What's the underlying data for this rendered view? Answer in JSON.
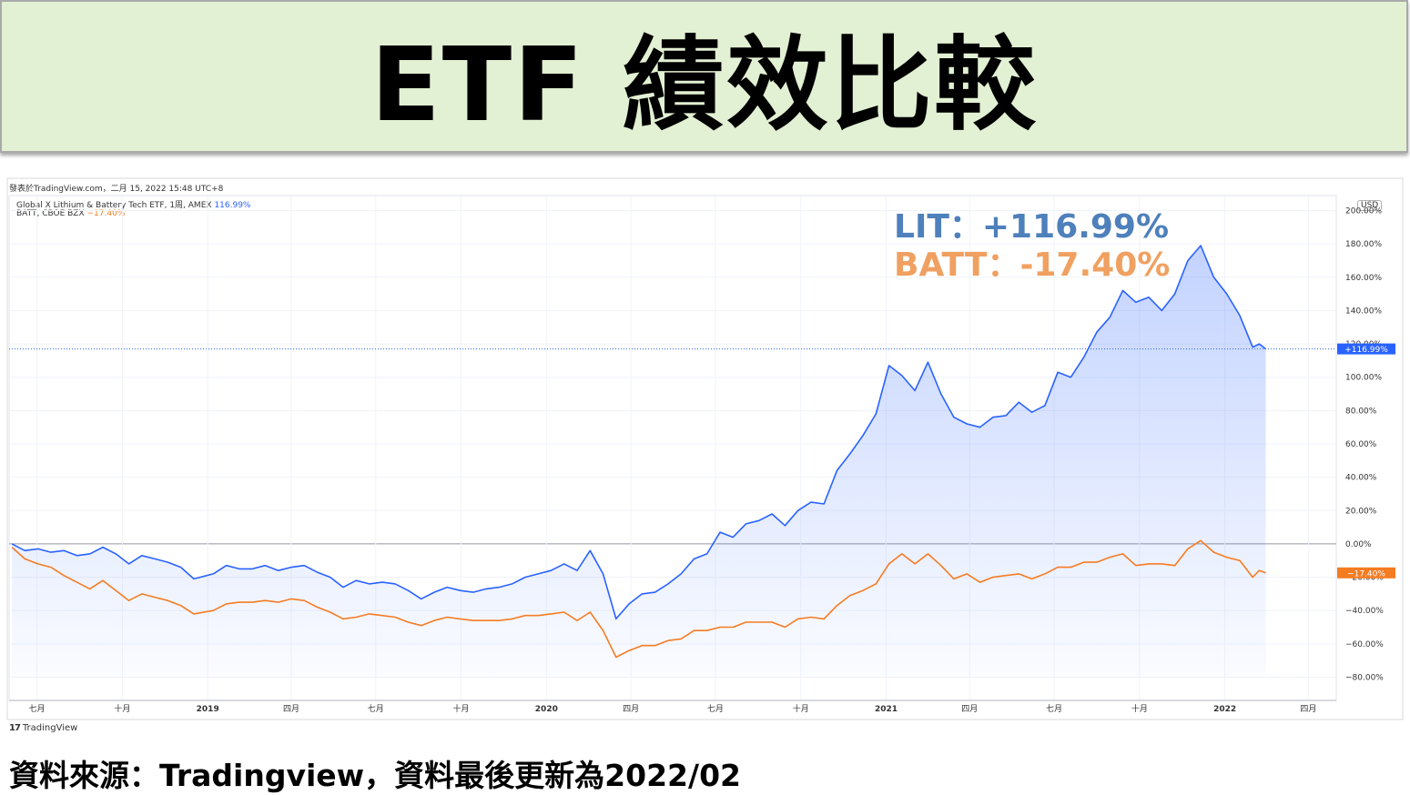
{
  "banner": {
    "title": "ETF 績效比較"
  },
  "publish_line": "發表於TradingView.com，二月 15, 2022 15:48 UTC+8",
  "legend": [
    {
      "label": "Global X Lithium & Battery Tech ETF, 1周, AMEX",
      "value": "116.99%",
      "color": "#2962ff"
    },
    {
      "label": "BATT, CBOE BZX",
      "value": "−17.40%",
      "color": "#f57c22"
    }
  ],
  "currency": "USD",
  "annotations": {
    "lit": "LIT：+116.99%",
    "batt": "BATT：-17.40%"
  },
  "tv_logo": {
    "mark": "17",
    "text": "TradingView"
  },
  "source_note": "資料來源：Tradingview，資料最後更新為2022/02",
  "chart_data": {
    "type": "line",
    "title": "",
    "y_unit": "%",
    "ylim": [
      -80,
      200
    ],
    "y_ticks": [
      "200.00%",
      "180.00%",
      "160.00%",
      "140.00%",
      "120.00%",
      "100.00%",
      "80.00%",
      "60.00%",
      "40.00%",
      "20.00%",
      "0.00%",
      "−20.00%",
      "−40.00%",
      "−60.00%",
      "−80.00%"
    ],
    "y_tick_values": [
      200,
      180,
      160,
      140,
      120,
      100,
      80,
      60,
      40,
      20,
      0,
      -20,
      -40,
      -60,
      -80
    ],
    "x_tick_labels": [
      "七月",
      "十月",
      "2019",
      "四月",
      "七月",
      "十月",
      "2020",
      "四月",
      "七月",
      "十月",
      "2021",
      "四月",
      "七月",
      "十月",
      "2022",
      "四月"
    ],
    "x_tick_dates": [
      "2018-07-01",
      "2018-10-01",
      "2019-01-01",
      "2019-04-01",
      "2019-07-01",
      "2019-10-01",
      "2020-01-01",
      "2020-04-01",
      "2020-07-01",
      "2020-10-01",
      "2021-01-01",
      "2021-04-01",
      "2021-07-01",
      "2021-10-01",
      "2022-01-01",
      "2022-04-01"
    ],
    "x_range": [
      "2018-06-01",
      "2022-05-01"
    ],
    "grid": true,
    "zero_line": true,
    "series": [
      {
        "name": "Global X Lithium & Battery Tech ETF",
        "color": "#2962ff",
        "last_label": "+116.99%",
        "area_fill": true,
        "points": [
          [
            "2018-06-04",
            0
          ],
          [
            "2018-06-18",
            -4
          ],
          [
            "2018-07-02",
            -3
          ],
          [
            "2018-07-16",
            -5
          ],
          [
            "2018-07-30",
            -4
          ],
          [
            "2018-08-13",
            -7
          ],
          [
            "2018-08-27",
            -6
          ],
          [
            "2018-09-10",
            -2
          ],
          [
            "2018-09-24",
            -6
          ],
          [
            "2018-10-08",
            -12
          ],
          [
            "2018-10-22",
            -7
          ],
          [
            "2018-11-05",
            -9
          ],
          [
            "2018-11-19",
            -11
          ],
          [
            "2018-12-03",
            -14
          ],
          [
            "2018-12-17",
            -21
          ],
          [
            "2019-01-07",
            -18
          ],
          [
            "2019-01-21",
            -13
          ],
          [
            "2019-02-04",
            -15
          ],
          [
            "2019-02-18",
            -15
          ],
          [
            "2019-03-04",
            -13
          ],
          [
            "2019-03-18",
            -16
          ],
          [
            "2019-04-01",
            -14
          ],
          [
            "2019-04-15",
            -13
          ],
          [
            "2019-04-29",
            -17
          ],
          [
            "2019-05-13",
            -20
          ],
          [
            "2019-05-27",
            -26
          ],
          [
            "2019-06-10",
            -22
          ],
          [
            "2019-06-24",
            -24
          ],
          [
            "2019-07-08",
            -23
          ],
          [
            "2019-07-22",
            -24
          ],
          [
            "2019-08-05",
            -28
          ],
          [
            "2019-08-19",
            -33
          ],
          [
            "2019-09-02",
            -29
          ],
          [
            "2019-09-16",
            -26
          ],
          [
            "2019-09-30",
            -28
          ],
          [
            "2019-10-14",
            -29
          ],
          [
            "2019-10-28",
            -27
          ],
          [
            "2019-11-11",
            -26
          ],
          [
            "2019-11-25",
            -24
          ],
          [
            "2019-12-09",
            -20
          ],
          [
            "2019-12-23",
            -18
          ],
          [
            "2020-01-06",
            -16
          ],
          [
            "2020-01-20",
            -12
          ],
          [
            "2020-02-03",
            -16
          ],
          [
            "2020-02-17",
            -4
          ],
          [
            "2020-03-02",
            -18
          ],
          [
            "2020-03-16",
            -45
          ],
          [
            "2020-03-30",
            -36
          ],
          [
            "2020-04-13",
            -30
          ],
          [
            "2020-04-27",
            -29
          ],
          [
            "2020-05-11",
            -24
          ],
          [
            "2020-05-25",
            -18
          ],
          [
            "2020-06-08",
            -9
          ],
          [
            "2020-06-22",
            -6
          ],
          [
            "2020-07-06",
            7
          ],
          [
            "2020-07-20",
            4
          ],
          [
            "2020-08-03",
            12
          ],
          [
            "2020-08-17",
            14
          ],
          [
            "2020-08-31",
            18
          ],
          [
            "2020-09-14",
            11
          ],
          [
            "2020-09-28",
            20
          ],
          [
            "2020-10-12",
            25
          ],
          [
            "2020-10-26",
            24
          ],
          [
            "2020-11-09",
            44
          ],
          [
            "2020-11-23",
            54
          ],
          [
            "2020-12-07",
            65
          ],
          [
            "2020-12-21",
            78
          ],
          [
            "2021-01-04",
            107
          ],
          [
            "2021-01-18",
            101
          ],
          [
            "2021-02-01",
            92
          ],
          [
            "2021-02-15",
            109
          ],
          [
            "2021-03-01",
            90
          ],
          [
            "2021-03-15",
            76
          ],
          [
            "2021-03-29",
            72
          ],
          [
            "2021-04-12",
            70
          ],
          [
            "2021-04-26",
            76
          ],
          [
            "2021-05-10",
            77
          ],
          [
            "2021-05-24",
            85
          ],
          [
            "2021-06-07",
            79
          ],
          [
            "2021-06-21",
            83
          ],
          [
            "2021-07-05",
            103
          ],
          [
            "2021-07-19",
            100
          ],
          [
            "2021-08-02",
            112
          ],
          [
            "2021-08-16",
            127
          ],
          [
            "2021-08-30",
            136
          ],
          [
            "2021-09-13",
            152
          ],
          [
            "2021-09-27",
            145
          ],
          [
            "2021-10-11",
            148
          ],
          [
            "2021-10-25",
            140
          ],
          [
            "2021-11-08",
            150
          ],
          [
            "2021-11-22",
            170
          ],
          [
            "2021-12-06",
            179
          ],
          [
            "2021-12-20",
            160
          ],
          [
            "2022-01-03",
            150
          ],
          [
            "2022-01-17",
            137
          ],
          [
            "2022-01-31",
            118
          ],
          [
            "2022-02-07",
            120
          ],
          [
            "2022-02-14",
            116.99
          ]
        ]
      },
      {
        "name": "BATT",
        "color": "#f57c22",
        "last_label": "−17.40%",
        "area_fill": false,
        "points": [
          [
            "2018-06-04",
            -2
          ],
          [
            "2018-06-18",
            -9
          ],
          [
            "2018-07-02",
            -12
          ],
          [
            "2018-07-16",
            -14
          ],
          [
            "2018-07-30",
            -19
          ],
          [
            "2018-08-13",
            -23
          ],
          [
            "2018-08-27",
            -27
          ],
          [
            "2018-09-10",
            -22
          ],
          [
            "2018-09-24",
            -28
          ],
          [
            "2018-10-08",
            -34
          ],
          [
            "2018-10-22",
            -30
          ],
          [
            "2018-11-05",
            -32
          ],
          [
            "2018-11-19",
            -34
          ],
          [
            "2018-12-03",
            -37
          ],
          [
            "2018-12-17",
            -42
          ],
          [
            "2019-01-07",
            -40
          ],
          [
            "2019-01-21",
            -36
          ],
          [
            "2019-02-04",
            -35
          ],
          [
            "2019-02-18",
            -35
          ],
          [
            "2019-03-04",
            -34
          ],
          [
            "2019-03-18",
            -35
          ],
          [
            "2019-04-01",
            -33
          ],
          [
            "2019-04-15",
            -34
          ],
          [
            "2019-04-29",
            -38
          ],
          [
            "2019-05-13",
            -41
          ],
          [
            "2019-05-27",
            -45
          ],
          [
            "2019-06-10",
            -44
          ],
          [
            "2019-06-24",
            -42
          ],
          [
            "2019-07-08",
            -43
          ],
          [
            "2019-07-22",
            -44
          ],
          [
            "2019-08-05",
            -47
          ],
          [
            "2019-08-19",
            -49
          ],
          [
            "2019-09-02",
            -46
          ],
          [
            "2019-09-16",
            -44
          ],
          [
            "2019-09-30",
            -45
          ],
          [
            "2019-10-14",
            -46
          ],
          [
            "2019-10-28",
            -46
          ],
          [
            "2019-11-11",
            -46
          ],
          [
            "2019-11-25",
            -45
          ],
          [
            "2019-12-09",
            -43
          ],
          [
            "2019-12-23",
            -43
          ],
          [
            "2020-01-06",
            -42
          ],
          [
            "2020-01-20",
            -41
          ],
          [
            "2020-02-03",
            -46
          ],
          [
            "2020-02-17",
            -41
          ],
          [
            "2020-03-02",
            -52
          ],
          [
            "2020-03-16",
            -68
          ],
          [
            "2020-03-30",
            -64
          ],
          [
            "2020-04-13",
            -61
          ],
          [
            "2020-04-27",
            -61
          ],
          [
            "2020-05-11",
            -58
          ],
          [
            "2020-05-25",
            -57
          ],
          [
            "2020-06-08",
            -52
          ],
          [
            "2020-06-22",
            -52
          ],
          [
            "2020-07-06",
            -50
          ],
          [
            "2020-07-20",
            -50
          ],
          [
            "2020-08-03",
            -47
          ],
          [
            "2020-08-17",
            -47
          ],
          [
            "2020-08-31",
            -47
          ],
          [
            "2020-09-14",
            -50
          ],
          [
            "2020-09-28",
            -45
          ],
          [
            "2020-10-12",
            -44
          ],
          [
            "2020-10-26",
            -45
          ],
          [
            "2020-11-09",
            -37
          ],
          [
            "2020-11-23",
            -31
          ],
          [
            "2020-12-07",
            -28
          ],
          [
            "2020-12-21",
            -24
          ],
          [
            "2021-01-04",
            -12
          ],
          [
            "2021-01-18",
            -6
          ],
          [
            "2021-02-01",
            -12
          ],
          [
            "2021-02-15",
            -6
          ],
          [
            "2021-03-01",
            -13
          ],
          [
            "2021-03-15",
            -21
          ],
          [
            "2021-03-29",
            -18
          ],
          [
            "2021-04-12",
            -23
          ],
          [
            "2021-04-26",
            -20
          ],
          [
            "2021-05-10",
            -19
          ],
          [
            "2021-05-24",
            -18
          ],
          [
            "2021-06-07",
            -21
          ],
          [
            "2021-06-21",
            -18
          ],
          [
            "2021-07-05",
            -14
          ],
          [
            "2021-07-19",
            -14
          ],
          [
            "2021-08-02",
            -11
          ],
          [
            "2021-08-16",
            -11
          ],
          [
            "2021-08-30",
            -8
          ],
          [
            "2021-09-13",
            -6
          ],
          [
            "2021-09-27",
            -13
          ],
          [
            "2021-10-11",
            -12
          ],
          [
            "2021-10-25",
            -12
          ],
          [
            "2021-11-08",
            -13
          ],
          [
            "2021-11-22",
            -3
          ],
          [
            "2021-12-06",
            2
          ],
          [
            "2021-12-20",
            -5
          ],
          [
            "2022-01-03",
            -8
          ],
          [
            "2022-01-17",
            -10
          ],
          [
            "2022-01-31",
            -20
          ],
          [
            "2022-02-07",
            -16
          ],
          [
            "2022-02-14",
            -17.4
          ]
        ]
      }
    ],
    "reference_line": {
      "value": 116.99,
      "color": "#2962ff",
      "style": "dotted"
    }
  }
}
